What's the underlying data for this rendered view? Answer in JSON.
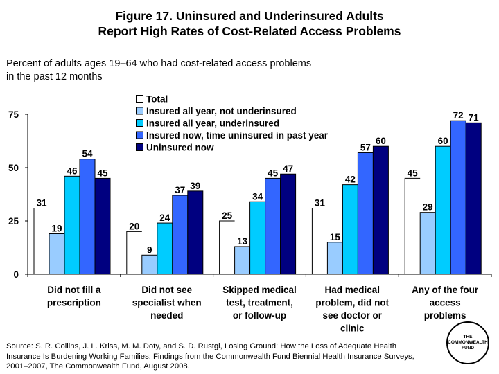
{
  "title_lines": [
    "Figure 17. Uninsured and Underinsured Adults",
    "Report High Rates of Cost-Related Access Problems"
  ],
  "subtitle_lines": [
    "Percent of adults ages 19–64 who had cost-related access problems",
    "in the past 12 months"
  ],
  "source": "Source: S. R. Collins, J. L. Kriss, M. M. Doty, and S. D. Rustgi, Losing Ground: How the Loss of Adequate Health Insurance Is Burdening Working Families: Findings from the Commonwealth Fund Biennial Health Insurance Surveys, 2001–2007, The Commonwealth Fund, August 2008.",
  "logo_lines": [
    "THE",
    "COMMONWEALTH",
    "FUND"
  ],
  "chart_data": {
    "type": "bar",
    "ylim": [
      0,
      75
    ],
    "yticks": [
      0,
      25,
      50,
      75
    ],
    "grid": false,
    "legend_position": "top-center",
    "categories": [
      [
        "Did not fill a",
        "prescription"
      ],
      [
        "Did not see",
        "specialist when",
        "needed"
      ],
      [
        "Skipped medical",
        "test, treatment,",
        "or follow-up"
      ],
      [
        "Had medical",
        "problem, did not",
        "see doctor or",
        "clinic"
      ],
      [
        "Any of the four",
        "access",
        "problems"
      ]
    ],
    "series": [
      {
        "name": "Total",
        "color": "#FFFFFF",
        "values": [
          31,
          20,
          25,
          31,
          45
        ]
      },
      {
        "name": "Insured all year, not underinsured",
        "color": "#99CCFF",
        "values": [
          19,
          9,
          13,
          15,
          29
        ]
      },
      {
        "name": "Insured all year, underinsured",
        "color": "#00CCFF",
        "values": [
          46,
          24,
          34,
          42,
          60
        ]
      },
      {
        "name": "Insured now, time uninsured in past year",
        "color": "#3366FF",
        "values": [
          54,
          37,
          45,
          57,
          72
        ]
      },
      {
        "name": "Uninsured now",
        "color": "#000080",
        "values": [
          45,
          39,
          47,
          60,
          71
        ]
      }
    ]
  }
}
